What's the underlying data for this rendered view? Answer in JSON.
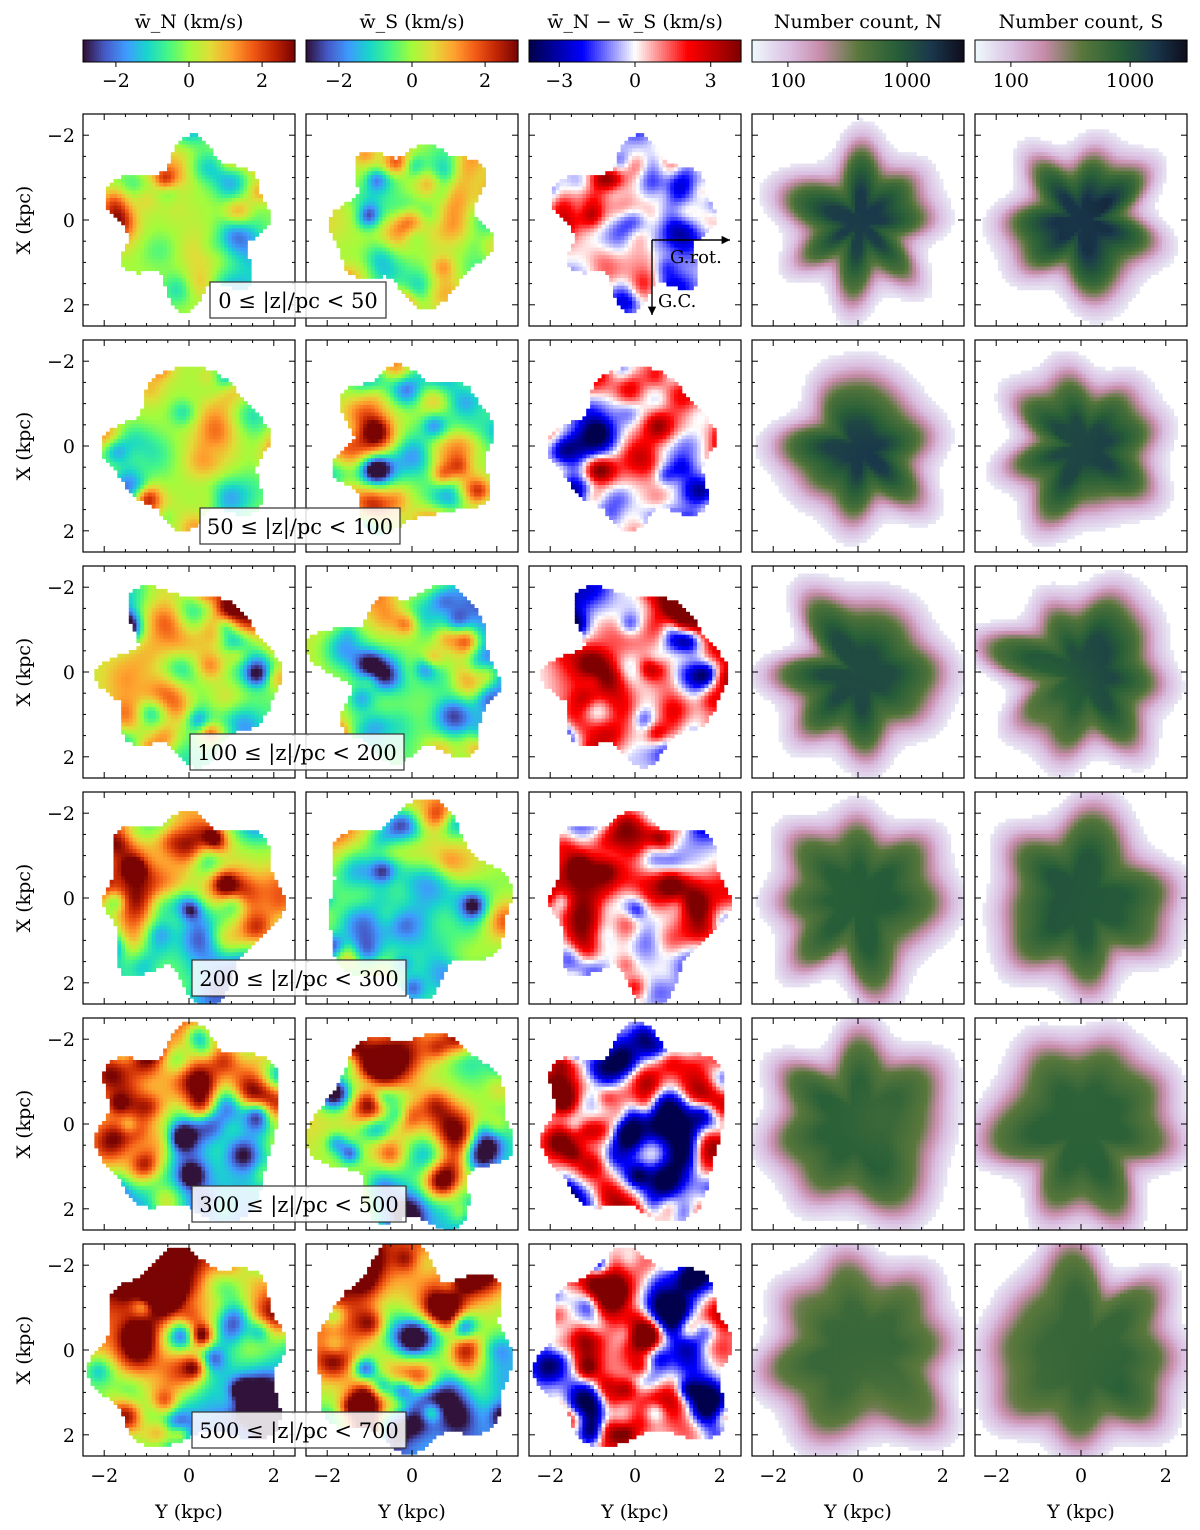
{
  "chart_data": {
    "type": "heatmap",
    "description_layout": "6 rows (|z| bins) x 5 columns (maps)",
    "columns": [
      {
        "colorbar_label": "w̄_N (km/s)",
        "colormap": "turbo",
        "ticks": [
          "−2",
          "0",
          "2"
        ],
        "tick_values": [
          -2,
          0,
          2
        ],
        "range": [
          -2.9,
          2.9
        ],
        "log": false
      },
      {
        "colorbar_label": "w̄_S (km/s)",
        "colormap": "turbo",
        "ticks": [
          "−2",
          "0",
          "2"
        ],
        "tick_values": [
          -2,
          0,
          2
        ],
        "range": [
          -2.9,
          2.9
        ],
        "log": false
      },
      {
        "colorbar_label": "w̄_N − w̄_S (km/s)",
        "colormap": "seismic",
        "ticks": [
          "−3",
          "0",
          "3"
        ],
        "tick_values": [
          -3,
          0,
          3
        ],
        "range": [
          -4.2,
          4.2
        ],
        "log": false
      },
      {
        "colorbar_label": "Number count, N",
        "colormap": "cubehelix_r",
        "ticks": [
          "100",
          "1000"
        ],
        "tick_values": [
          100,
          1000
        ],
        "range": [
          50,
          3000
        ],
        "log": true
      },
      {
        "colorbar_label": "Number count, S",
        "colormap": "cubehelix_r",
        "ticks": [
          "100",
          "1000"
        ],
        "tick_values": [
          100,
          1000
        ],
        "range": [
          50,
          3000
        ],
        "log": true
      }
    ],
    "rows": [
      {
        "label": "0 ≤ |z|/pc < 50",
        "z_min": 0,
        "z_max": 50
      },
      {
        "label": "50 ≤ |z|/pc < 100",
        "z_min": 50,
        "z_max": 100
      },
      {
        "label": "100 ≤ |z|/pc < 200",
        "z_min": 100,
        "z_max": 200
      },
      {
        "label": "200 ≤ |z|/pc < 300",
        "z_min": 200,
        "z_max": 300
      },
      {
        "label": "300 ≤ |z|/pc < 500",
        "z_min": 300,
        "z_max": 500
      },
      {
        "label": "500 ≤ |z|/pc < 700",
        "z_min": 500,
        "z_max": 700
      }
    ],
    "xaxis": {
      "label": "Y (kpc)",
      "ticks": [
        -2,
        0,
        2
      ],
      "tick_labels": [
        "−2",
        "0",
        "2"
      ],
      "range": [
        -2.5,
        2.5
      ]
    },
    "yaxis": {
      "label": "X (kpc)",
      "ticks": [
        -2,
        0,
        2
      ],
      "tick_labels": [
        "−2",
        "0",
        "2"
      ],
      "range": [
        -2.5,
        2.5
      ],
      "inverted": true
    },
    "annotations": {
      "rotation_arrow": "G.rot.",
      "center_arrow": "G.C."
    }
  }
}
